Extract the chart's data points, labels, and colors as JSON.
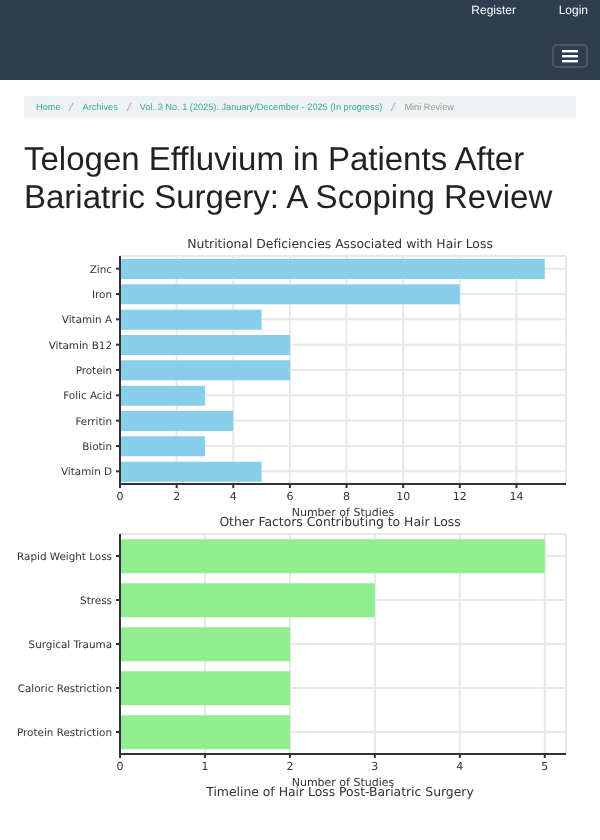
{
  "chart_data": [
    {
      "type": "bar",
      "orientation": "horizontal",
      "title": "Nutritional Deficiencies Associated with Hair Loss",
      "xlabel": "Number of Studies",
      "categories": [
        "Zinc",
        "Iron",
        "Vitamin A",
        "Vitamin B12",
        "Protein",
        "Folic Acid",
        "Ferritin",
        "Biotin",
        "Vitamin D"
      ],
      "values": [
        15,
        12,
        5,
        6,
        6,
        3,
        4,
        3,
        5
      ],
      "color": "#87ceeb",
      "xlim": [
        0,
        15.75
      ],
      "xticks": [
        0,
        2,
        4,
        6,
        8,
        10,
        12,
        14
      ],
      "grid": true,
      "legend": false,
      "annotations": [
        "Register",
        "Login",
        "Home",
        "Archives",
        "Vol. 3 No. 1 (2025): January/December - 2025 (In progress)",
        "Mini Review",
        "Telogen Effluvium in Patients After Bariatric Surgery: A Scoping Review"
      ]
    },
    {
      "type": "bar",
      "orientation": "horizontal",
      "title": "Other Factors Contributing to Hair Loss",
      "xlabel": "Number of Studies",
      "categories": [
        "Rapid Weight Loss",
        "Stress",
        "Surgical Trauma",
        "Caloric Restriction",
        "Protein Restriction"
      ],
      "values": [
        5,
        3,
        2,
        2,
        2
      ],
      "color": "#90ee90",
      "xlim": [
        0,
        5.25
      ],
      "xticks": [
        0,
        1,
        2,
        3,
        4,
        5
      ],
      "grid": true,
      "legend": false
    },
    {
      "type": "other",
      "title": "Timeline of Hair Loss Post-Bariatric Surgery"
    }
  ]
}
